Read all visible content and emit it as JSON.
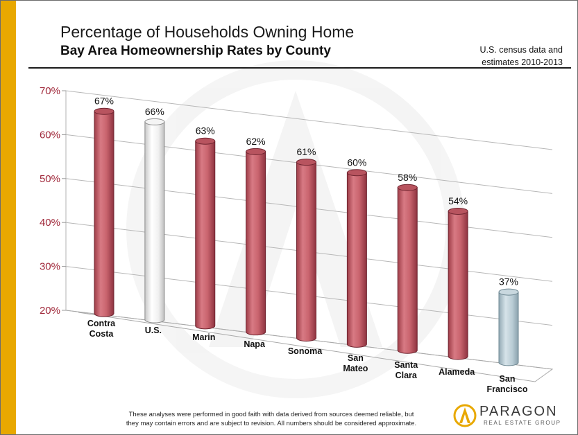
{
  "header": {
    "title": "Percentage of Households Owning Home",
    "subtitle": "Bay Area Homeownership Rates by County",
    "source_line1": "U.S. census data and",
    "source_line2": "estimates 2010-2013"
  },
  "footer": {
    "disclaimer_line1": "These analyses were performed in good faith with data derived from sources  deemed reliable, but",
    "disclaimer_line2": "they may contain errors and are subject to revision.  All numbers should be considered approximate."
  },
  "logo": {
    "name": "PARAGON",
    "tagline": "REAL ESTATE GROUP",
    "icon": "paragon-arrow-icon"
  },
  "colors": {
    "accent_bar": "#e8a800",
    "county_bar": "#c9646e",
    "us_bar": "#f2f2f2",
    "sf_bar": "#b8cbd4",
    "axis_tick_text": "#a0283a"
  },
  "chart_data": {
    "type": "bar",
    "style": "3d-cylinder",
    "title": "Bay Area Homeownership Rates by County",
    "categories": [
      [
        "Contra",
        "Costa"
      ],
      [
        "U.S."
      ],
      [
        "Marin"
      ],
      [
        "Napa"
      ],
      [
        "Sonoma"
      ],
      [
        "San",
        "Mateo"
      ],
      [
        "Santa",
        "Clara"
      ],
      [
        "Alameda"
      ],
      [
        "San",
        "Francisco"
      ]
    ],
    "values": [
      67,
      66,
      63,
      62,
      61,
      60,
      58,
      54,
      37
    ],
    "data_labels": [
      "67%",
      "66%",
      "63%",
      "62%",
      "61%",
      "60%",
      "58%",
      "54%",
      "37%"
    ],
    "highlight": {
      "U.S.": "us_bar",
      "San Francisco": "sf_bar"
    },
    "ylim": [
      20,
      70
    ],
    "yticks": [
      {
        "value": 20,
        "label": "20%"
      },
      {
        "value": 30,
        "label": "30%"
      },
      {
        "value": 40,
        "label": "40%"
      },
      {
        "value": 50,
        "label": "50%"
      },
      {
        "value": 60,
        "label": "60%"
      },
      {
        "value": 70,
        "label": "70%"
      }
    ],
    "grid": true,
    "legend": "none"
  }
}
